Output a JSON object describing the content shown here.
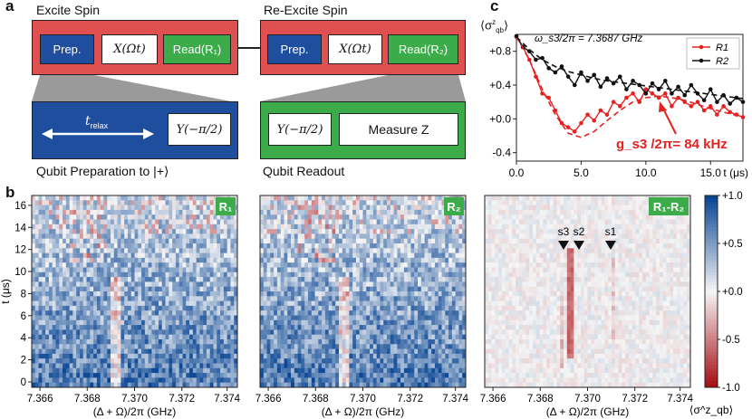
{
  "panel_a": {
    "label": "a",
    "block1_title": "Excite Spin",
    "block2_title": "Re-Excite Spin",
    "prep": "Prep.",
    "x_gate": "X(Ωt)",
    "read1": "Read(R₁)",
    "read2": "Read(R₂)",
    "t_relax": "t",
    "t_relax_sub": "relax",
    "y_gate": "Y(−π/2)",
    "measure": "Measure Z",
    "caption_prep": "Qubit Preparation to |+⟩",
    "caption_read": "Qubit Readout",
    "colors": {
      "red": "#e05050",
      "blue": "#1f4e9e",
      "green": "#3cab4a"
    }
  },
  "panel_b": {
    "label": "b",
    "maps": [
      {
        "tag": "R₁"
      },
      {
        "tag": "R₂"
      },
      {
        "tag": "R₁-R₂"
      }
    ],
    "ylabel": "t (μs)",
    "yticks": [
      "0",
      "2",
      "4",
      "6",
      "8",
      "10",
      "12",
      "14",
      "16"
    ],
    "xticks": [
      "7.366",
      "7.368",
      "7.370",
      "7.372",
      "7.374"
    ],
    "xlabel": "(Δ + Ω)/2π (GHz)",
    "markers": [
      "s3",
      "s2",
      "s1"
    ],
    "colorbar_ticks": [
      "+1.0",
      "+0.5",
      "+0.0",
      "-0.5",
      "-1.0"
    ],
    "colorbar_label": "⟨σ^z_qb⟩"
  },
  "chart_data": [
    {
      "type": "line",
      "title": "",
      "ylabel": "⟨σ^z_qb⟩",
      "xlabel": "t (μs)",
      "xlim": [
        0,
        17.5
      ],
      "ylim": [
        -0.5,
        1.0
      ],
      "xticks": [
        "0.0",
        "5.0",
        "10.0",
        "15.0"
      ],
      "yticks": [
        "+0.8",
        "+0.4",
        "+0.0",
        "-0.4"
      ],
      "annotations": [
        "ω_s3/2π = 7.3687 GHz",
        "g_s3 /2π= 84 kHz"
      ],
      "legend": "top-right",
      "series": [
        {
          "name": "R1",
          "color": "#e82020",
          "x": [
            0,
            0.5,
            1,
            1.5,
            2,
            2.5,
            3,
            3.5,
            4,
            4.5,
            5,
            5.5,
            6,
            6.5,
            7,
            7.5,
            8,
            8.5,
            9,
            9.5,
            10,
            10.5,
            11,
            11.5,
            12,
            12.5,
            13,
            13.5,
            14,
            14.5,
            15,
            15.5,
            16,
            16.5,
            17,
            17.5
          ],
          "values": [
            0.97,
            0.85,
            0.7,
            0.5,
            0.3,
            0.25,
            0.1,
            -0.05,
            -0.1,
            -0.15,
            -0.05,
            0.05,
            -0.02,
            0.1,
            0.05,
            0.2,
            0.15,
            0.25,
            0.3,
            0.2,
            0.35,
            0.3,
            0.25,
            0.3,
            0.15,
            0.25,
            0.2,
            0.15,
            0.2,
            0.1,
            0.15,
            0.05,
            0.15,
            0.08,
            0.05,
            0.02
          ]
        },
        {
          "name": "R2",
          "color": "#111111",
          "x": [
            0,
            0.5,
            1,
            1.5,
            2,
            2.5,
            3,
            3.5,
            4,
            4.5,
            5,
            5.5,
            6,
            6.5,
            7,
            7.5,
            8,
            8.5,
            9,
            9.5,
            10,
            10.5,
            11,
            11.5,
            12,
            12.5,
            13,
            13.5,
            14,
            14.5,
            15,
            15.5,
            16,
            16.5,
            17,
            17.5
          ],
          "values": [
            0.98,
            0.85,
            0.8,
            0.7,
            0.72,
            0.6,
            0.55,
            0.62,
            0.5,
            0.4,
            0.55,
            0.45,
            0.52,
            0.38,
            0.48,
            0.42,
            0.5,
            0.35,
            0.45,
            0.4,
            0.3,
            0.42,
            0.35,
            0.45,
            0.3,
            0.38,
            0.28,
            0.4,
            0.3,
            0.22,
            0.35,
            0.2,
            0.28,
            0.18,
            0.25,
            0.2
          ]
        },
        {
          "name": "",
          "color": "#e82020",
          "dashed": true,
          "x": [
            0,
            1,
            2,
            3,
            4,
            5,
            6,
            7,
            8,
            9,
            10,
            11,
            12,
            13,
            14,
            15,
            16,
            17,
            17.5
          ],
          "values": [
            0.97,
            0.7,
            0.35,
            0.05,
            -0.17,
            -0.22,
            -0.15,
            -0.02,
            0.1,
            0.2,
            0.25,
            0.27,
            0.25,
            0.22,
            0.17,
            0.12,
            0.08,
            0.04,
            0.03
          ]
        },
        {
          "name": "",
          "color": "#111111",
          "dashed": true,
          "x": [
            0,
            1,
            2,
            3,
            4,
            5,
            6,
            7,
            8,
            9,
            10,
            11,
            12,
            13,
            14,
            15,
            16,
            17,
            17.5
          ],
          "values": [
            0.97,
            0.82,
            0.7,
            0.62,
            0.56,
            0.52,
            0.48,
            0.45,
            0.43,
            0.41,
            0.39,
            0.37,
            0.35,
            0.33,
            0.31,
            0.29,
            0.27,
            0.25,
            0.24
          ]
        }
      ]
    }
  ]
}
